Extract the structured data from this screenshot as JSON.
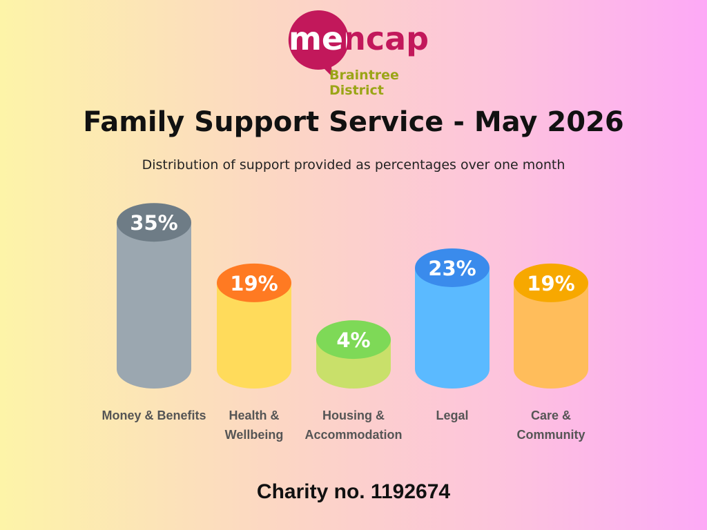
{
  "logo": {
    "name": "mencap",
    "line1": "Braintree",
    "line2": "District"
  },
  "chart_data": {
    "type": "bar",
    "title": "Family Support Service - May 2026",
    "subtitle": "Distribution of support provided as percentages over one month",
    "categories": [
      "Money & Benefits",
      "Health & Wellbeing",
      "Housing & Accommodation",
      "Legal",
      "Care & Community"
    ],
    "values": [
      35,
      19,
      4,
      23,
      19
    ],
    "value_labels": [
      "35%",
      "19%",
      "4%",
      "23%",
      "19%"
    ],
    "colors": [
      "#9ba7b0",
      "#ffdb5b",
      "#c9e06a",
      "#5bbaff",
      "#ffbd5b"
    ],
    "top_colors": [
      "#6e7c86",
      "#ff7a22",
      "#7ed957",
      "#3a8bec",
      "#f7a800"
    ]
  },
  "footer": "Charity no. 1192674"
}
